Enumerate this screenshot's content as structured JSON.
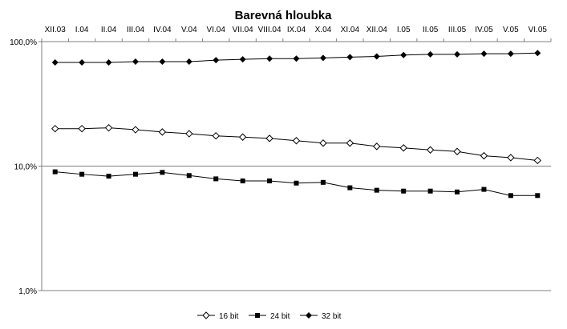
{
  "chart_data": {
    "type": "line",
    "title": "Barevná hloubka",
    "xlabel": "",
    "ylabel": "",
    "y_scale": "log",
    "ylim": [
      1,
      100
    ],
    "y_ticks": [
      1,
      10,
      100
    ],
    "y_tick_labels": [
      "1,0%",
      "10,0%",
      "100,0%"
    ],
    "x_axis_position": "top",
    "grid": "horizontal",
    "legend_position": "bottom-center",
    "categories": [
      "XII.03",
      "I.04",
      "II.04",
      "III.04",
      "IV.04",
      "V.04",
      "VI.04",
      "VII.04",
      "VIII.04",
      "IX.04",
      "X.04",
      "XI.04",
      "XII.04",
      "I.05",
      "II.05",
      "III.05",
      "IV.05",
      "V.05",
      "VI.05"
    ],
    "series": [
      {
        "name": "16 bit",
        "marker": "diamond-open",
        "color": "#000000",
        "values": [
          20.0,
          20.0,
          20.3,
          19.6,
          18.8,
          18.2,
          17.5,
          17.1,
          16.7,
          16.0,
          15.3,
          15.3,
          14.4,
          14.0,
          13.5,
          13.1,
          12.1,
          11.7,
          11.1
        ]
      },
      {
        "name": "24 bit",
        "marker": "square",
        "color": "#000000",
        "values": [
          9.0,
          8.6,
          8.3,
          8.6,
          8.9,
          8.4,
          7.9,
          7.6,
          7.6,
          7.3,
          7.4,
          6.7,
          6.4,
          6.3,
          6.3,
          6.2,
          6.5,
          5.8,
          5.8
        ]
      },
      {
        "name": "32 bit",
        "marker": "diamond",
        "color": "#000000",
        "values": [
          68,
          68,
          68,
          69,
          69,
          69,
          71,
          72,
          73,
          73,
          74,
          75,
          76,
          78,
          79,
          79,
          80,
          80,
          81
        ]
      }
    ]
  }
}
